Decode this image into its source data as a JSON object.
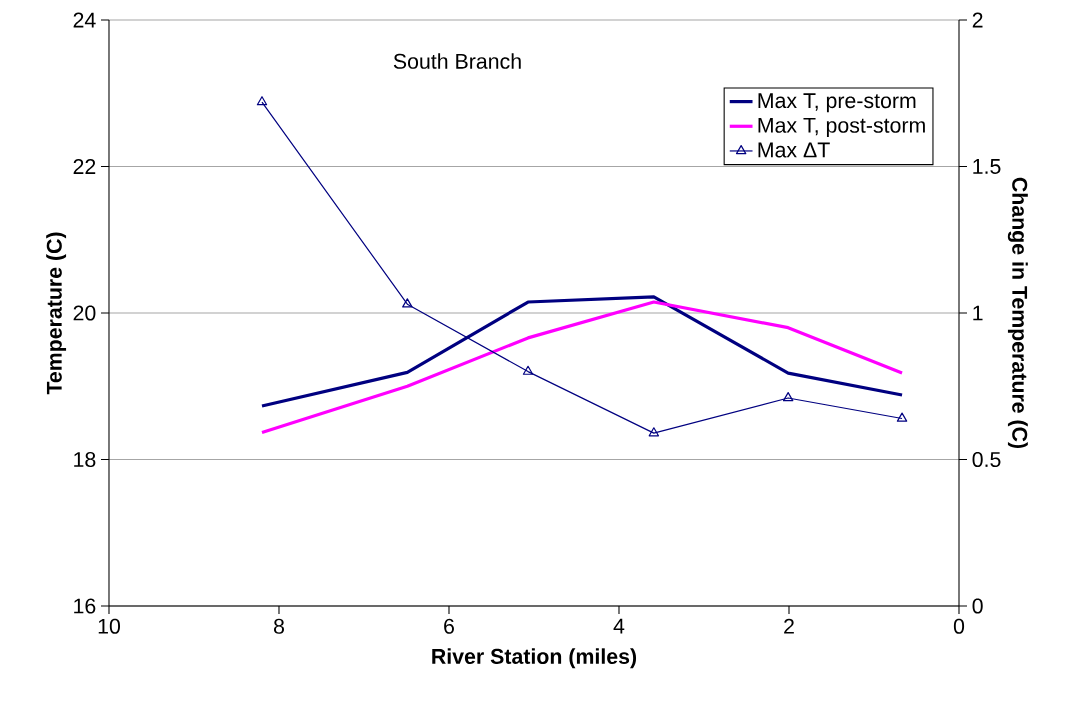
{
  "chart_data": {
    "type": "line",
    "annotations": [
      "South Branch"
    ],
    "xlabel": "River Station (miles)",
    "ylabel": "Temperature (C)",
    "y2label": "Change in Temperature (C)",
    "x": [
      8.2,
      6.49,
      5.07,
      3.59,
      2.01,
      0.67
    ],
    "xlim": [
      10,
      0
    ],
    "xticks": [
      10,
      8,
      6,
      4,
      2,
      0
    ],
    "ylim": [
      16,
      24
    ],
    "yticks": [
      16,
      18,
      20,
      22,
      24
    ],
    "y2lim": [
      0,
      2
    ],
    "y2ticks": [
      0,
      0.5,
      1,
      1.5,
      2
    ],
    "grid": "y",
    "legend": "top right",
    "line_style": "solid",
    "series": [
      {
        "name": "Max T, pre-storm",
        "color": "#000080",
        "marker": "none",
        "values": [
          18.73,
          19.19,
          20.15,
          20.22,
          19.18,
          18.88
        ]
      },
      {
        "name": "Max T, post-storm",
        "color": "#ff00ff",
        "marker": "none",
        "values": [
          18.37,
          19.0,
          19.66,
          20.15,
          19.8,
          19.18
        ]
      },
      {
        "name": "Max ΔT",
        "color": "#000080",
        "marker": "triangle",
        "axis": "y2",
        "values": [
          1.72,
          1.03,
          0.8,
          0.59,
          0.71,
          0.64
        ]
      }
    ]
  }
}
